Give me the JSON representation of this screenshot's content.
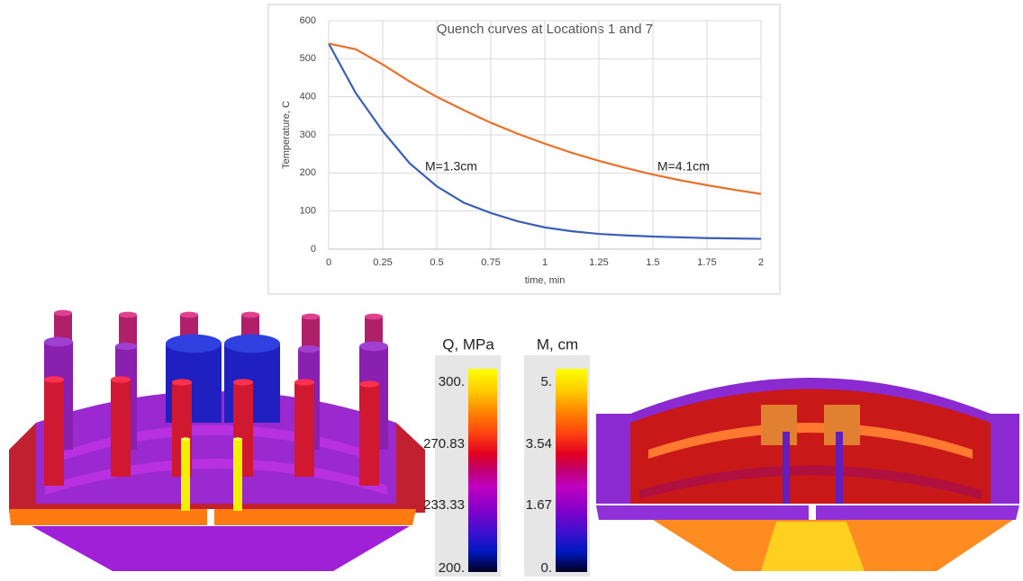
{
  "chart_data": {
    "type": "line",
    "title": "Quench curves at Locations 1 and 7",
    "x_label": "time, min",
    "y_label": "Temperature, C",
    "x": [
      0,
      0.125,
      0.25,
      0.375,
      0.5,
      0.625,
      0.75,
      0.875,
      1,
      1.125,
      1.25,
      1.375,
      1.5,
      1.625,
      1.75,
      1.875,
      2
    ],
    "series": [
      {
        "name": "M=1.3cm",
        "color": "#3a5fb5",
        "values": [
          540,
          410,
          310,
          225,
          165,
          122,
          95,
          73,
          57,
          47,
          40,
          36,
          33,
          31,
          29,
          28,
          27
        ]
      },
      {
        "name": "M=4.1cm",
        "color": "#e8702a",
        "values": [
          540,
          525,
          485,
          440,
          400,
          365,
          332,
          303,
          277,
          253,
          232,
          213,
          196,
          181,
          168,
          156,
          145
        ]
      }
    ],
    "xlim": [
      0,
      2
    ],
    "xticks": [
      0,
      0.25,
      0.5,
      0.75,
      1,
      1.25,
      1.5,
      1.75,
      2
    ],
    "ylim": [
      0,
      600
    ],
    "yticks": [
      0,
      100,
      200,
      300,
      400,
      500,
      600
    ],
    "grid": true
  },
  "colorbars": [
    {
      "title": "Q, MPa",
      "labels": [
        "300.",
        "270.83",
        "233.33",
        "200."
      ]
    },
    {
      "title": "M, cm",
      "labels": [
        "5.",
        "3.54",
        "1.67",
        "0."
      ]
    }
  ]
}
